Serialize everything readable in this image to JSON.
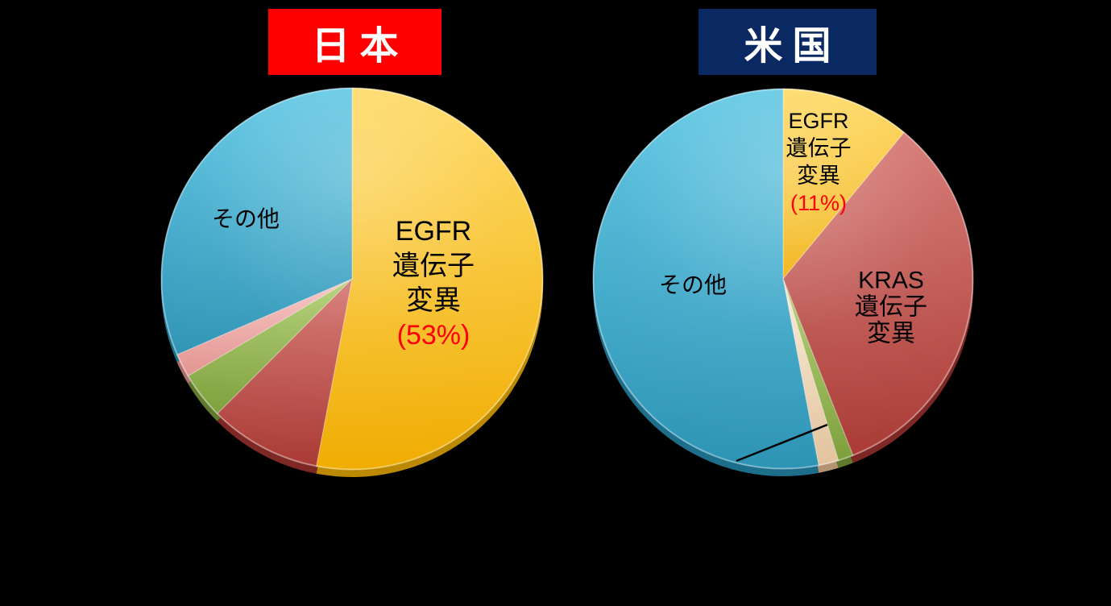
{
  "page": {
    "background_color": "#000000",
    "description_colors": {
      "japan_title_bg": "#FF0000",
      "us_title_bg": "#0A2862",
      "title_text": "#FFFFFF",
      "pct_text": "#FF0000",
      "slice_label_text": "#000000"
    }
  },
  "chart_data": [
    {
      "type": "pie",
      "title": "日本",
      "title_style": {
        "bg": "#FF0000",
        "text_color": "#FFFFFF"
      },
      "start_angle_deg": 0,
      "direction": "clockwise",
      "slices": [
        {
          "label": "EGFR遺伝子変異",
          "pct": 53,
          "color": "#FFC512",
          "color_light": "#FFD75A",
          "color_dark": "#F0AC00",
          "color_side": "#BC8A00"
        },
        {
          "label": "",
          "pct": 9.5,
          "color": "#C4423D",
          "color_light": "#D4726D",
          "color_dark": "#A93833",
          "color_side": "#7E2825"
        },
        {
          "label": "",
          "pct": 4,
          "color": "#97BC4D",
          "color_light": "#AFCE6F",
          "color_dark": "#7C9E3A",
          "color_side": "#5F7A2C"
        },
        {
          "label": "",
          "pct": 2,
          "color": "#EFA8A5",
          "color_light": "#F6C3C1",
          "color_dark": "#E2928E",
          "color_side": "#B06F6C"
        },
        {
          "label": "その他",
          "pct": 31.5,
          "color": "#33A3C2",
          "color_light": "#55C3E2",
          "color_dark": "#2B92B4",
          "color_side": "#1C6E8A"
        }
      ],
      "annotations": {
        "other_label": "その他",
        "egfr_label_lines": [
          "EGFR",
          "遺伝子",
          "変異"
        ],
        "egfr_pct_label": "(53%)",
        "pct_label_color": "#FF0000"
      }
    },
    {
      "type": "pie",
      "title": "米国",
      "title_style": {
        "bg": "#0A2862",
        "text_color": "#FFFFFF"
      },
      "start_angle_deg": 0,
      "direction": "clockwise",
      "slices": [
        {
          "label": "EGFR遺伝子変異",
          "pct": 11,
          "color": "#FFC512",
          "color_light": "#FFD75A",
          "color_dark": "#F0AC00",
          "color_side": "#BC8A00"
        },
        {
          "label": "KRAS遺伝子変異",
          "pct": 33,
          "color": "#C4423D",
          "color_light": "#D4726D",
          "color_dark": "#A93833",
          "color_side": "#7E2825"
        },
        {
          "label": "",
          "pct": 1.3,
          "color": "#97BC4D",
          "color_light": "#AFCE6F",
          "color_dark": "#7C9E3A",
          "color_side": "#5F7A2C"
        },
        {
          "label": "",
          "pct": 1.7,
          "color": "#F2DCBC",
          "color_light": "#F9EBD5",
          "color_dark": "#E2C29C",
          "color_side": "#B39372"
        },
        {
          "label": "その他",
          "pct": 53,
          "color": "#33A3C2",
          "color_light": "#55C3E2",
          "color_dark": "#2B92B4",
          "color_side": "#1C6E8A"
        }
      ],
      "annotations": {
        "other_label": "その他",
        "egfr_label_lines": [
          "EGFR",
          "遺伝子",
          "変異"
        ],
        "egfr_pct_label": "(11%)",
        "kras_label_lines": [
          "KRAS",
          "遺伝子",
          "変異"
        ],
        "pct_label_color": "#FF0000",
        "has_leader_line": true
      }
    }
  ]
}
